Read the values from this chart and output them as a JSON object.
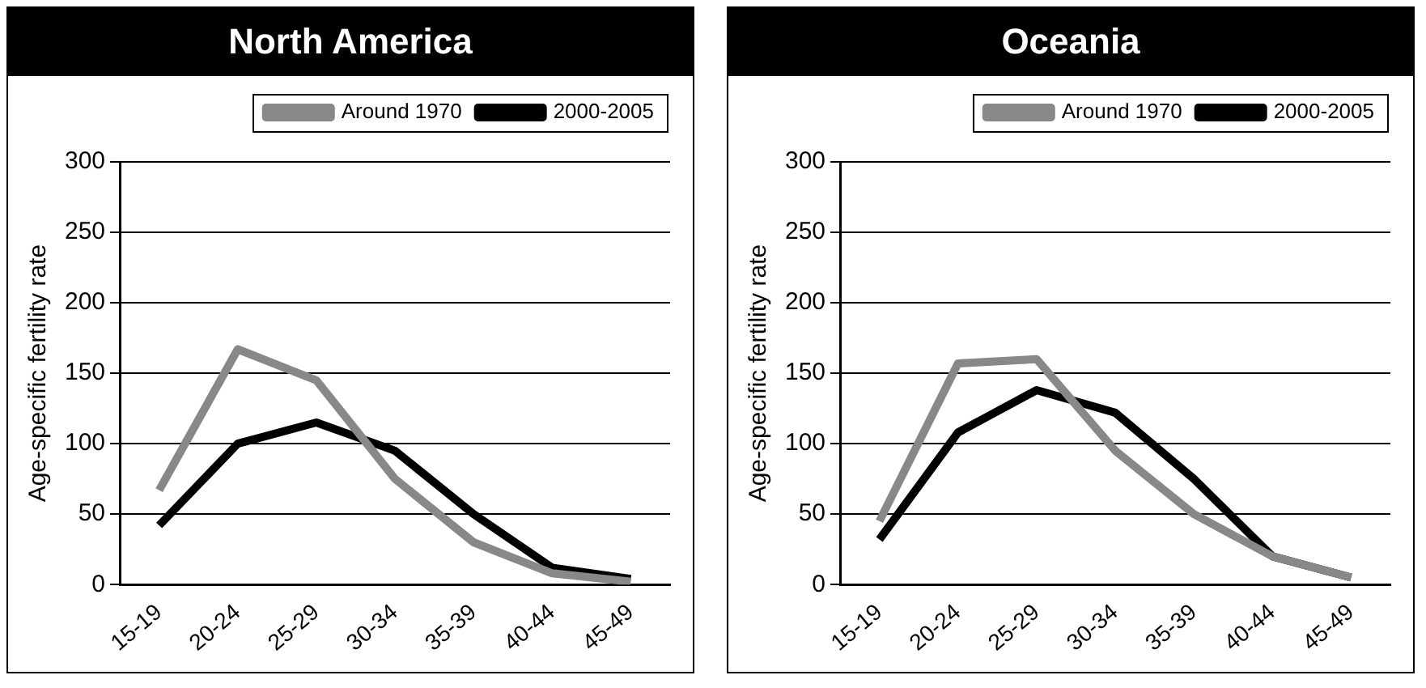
{
  "chart_data": [
    {
      "type": "line",
      "title": "North America",
      "ylabel": "Age-specific fertility rate",
      "categories": [
        "15-19",
        "20-24",
        "25-29",
        "30-34",
        "35-39",
        "40-44",
        "45-49"
      ],
      "series": [
        {
          "name": "Around 1970",
          "color": "#888888",
          "values": [
            67,
            167,
            145,
            75,
            30,
            8,
            2
          ]
        },
        {
          "name": "2000-2005",
          "color": "#000000",
          "values": [
            42,
            100,
            115,
            95,
            50,
            12,
            4
          ]
        }
      ],
      "ylim": [
        0,
        300
      ],
      "yticks": [
        0,
        50,
        100,
        150,
        200,
        250,
        300
      ],
      "grid": "y",
      "legend": "top right",
      "marker": "none",
      "line_style": "solid"
    },
    {
      "type": "line",
      "title": "Oceania",
      "ylabel": "Age-specific fertility rate",
      "categories": [
        "15-19",
        "20-24",
        "25-29",
        "30-34",
        "35-39",
        "40-44",
        "45-49"
      ],
      "series": [
        {
          "name": "Around 1970",
          "color": "#888888",
          "values": [
            45,
            157,
            160,
            95,
            50,
            20,
            5
          ]
        },
        {
          "name": "2000-2005",
          "color": "#000000",
          "values": [
            32,
            108,
            138,
            122,
            75,
            20,
            5
          ]
        }
      ],
      "ylim": [
        0,
        300
      ],
      "yticks": [
        0,
        50,
        100,
        150,
        200,
        250,
        300
      ],
      "grid": "y",
      "legend": "top right",
      "marker": "none",
      "line_style": "solid"
    }
  ]
}
